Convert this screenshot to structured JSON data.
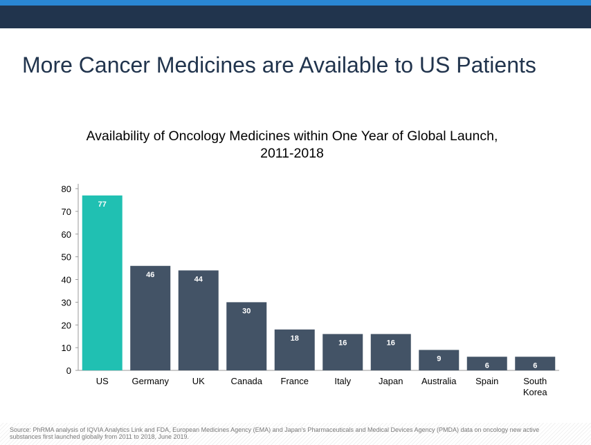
{
  "header": {
    "title": "More Cancer Medicines are Available to US Patients"
  },
  "chart_data": {
    "type": "bar",
    "title": "Availability of Oncology Medicines within One Year of Global Launch, 2011-2018",
    "categories": [
      "US",
      "Germany",
      "UK",
      "Canada",
      "France",
      "Italy",
      "Japan",
      "Australia",
      "Spain",
      "South Korea"
    ],
    "values": [
      77,
      46,
      44,
      30,
      18,
      16,
      16,
      9,
      6,
      6
    ],
    "ylim": [
      0,
      80
    ],
    "yticks": [
      0,
      10,
      20,
      30,
      40,
      50,
      60,
      70,
      80
    ],
    "grid": false,
    "colors": {
      "highlight": "#20c0b2",
      "default": "#435366"
    }
  },
  "footer": {
    "source": "Source: PhRMA analysis of IQVIA Analytics Link and FDA, European Medicines Agency (EMA) and Japan's Pharmaceuticals and Medical Devices Agency (PMDA) data on oncology new active substances first launched globally from 2011 to 2018, June 2019."
  }
}
